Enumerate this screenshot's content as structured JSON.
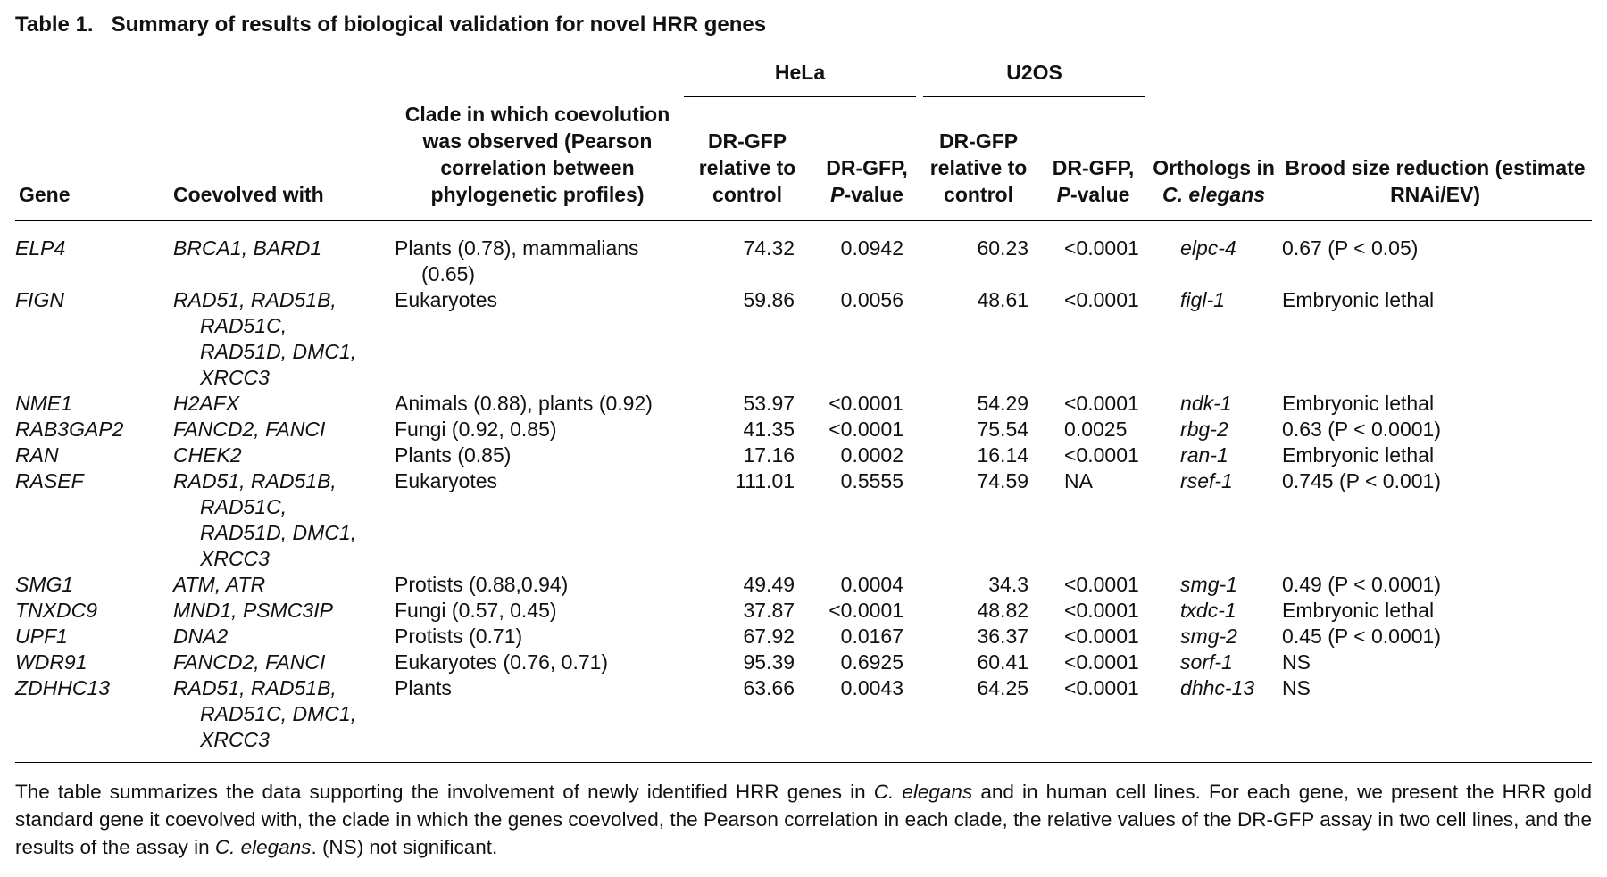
{
  "title": {
    "label": "Table 1.",
    "text": "Summary of results of biological validation for novel HRR genes"
  },
  "table": {
    "groups": [
      "HeLa",
      "U2OS"
    ],
    "columns": [
      [
        {
          "text": "Gene"
        }
      ],
      [
        {
          "text": "Coevolved with"
        }
      ],
      [
        {
          "text": "Clade in which coevolution was observed (Pearson correlation between phylogenetic profiles)"
        }
      ],
      [
        {
          "text": "DR-GFP relative to control"
        }
      ],
      [
        {
          "text": "DR-GFP, "
        },
        {
          "text": "P",
          "italic": true
        },
        {
          "text": "-value"
        }
      ],
      [
        {
          "text": "DR-GFP relative to control"
        }
      ],
      [
        {
          "text": "DR-GFP, "
        },
        {
          "text": "P",
          "italic": true
        },
        {
          "text": "-value"
        }
      ],
      [
        {
          "text": "Orthologs in "
        },
        {
          "text": "C. elegans",
          "italic": true
        }
      ],
      [
        {
          "text": "Brood size reduction (estimate RNAi/EV)"
        }
      ]
    ],
    "rows": [
      [
        "ELP4",
        "BRCA1, BARD1",
        "Plants (0.78), mammalians (0.65)",
        "74.32",
        "0.0942",
        "60.23",
        "<0.0001",
        "elpc-4",
        "0.67 (P < 0.05)"
      ],
      [
        "FIGN",
        "RAD51, RAD51B, RAD51C, RAD51D, DMC1, XRCC3",
        "Eukaryotes",
        "59.86",
        "0.0056",
        "48.61",
        "<0.0001",
        "figl-1",
        "Embryonic lethal"
      ],
      [
        "NME1",
        "H2AFX",
        "Animals (0.88), plants (0.92)",
        "53.97",
        "<0.0001",
        "54.29",
        "<0.0001",
        "ndk-1",
        "Embryonic lethal"
      ],
      [
        "RAB3GAP2",
        "FANCD2, FANCI",
        "Fungi (0.92, 0.85)",
        "41.35",
        "<0.0001",
        "75.54",
        "0.0025",
        "rbg-2",
        "0.63 (P < 0.0001)"
      ],
      [
        "RAN",
        "CHEK2",
        "Plants (0.85)",
        "17.16",
        "0.0002",
        "16.14",
        "<0.0001",
        "ran-1",
        "Embryonic lethal"
      ],
      [
        "RASEF",
        "RAD51, RAD51B, RAD51C, RAD51D, DMC1, XRCC3",
        "Eukaryotes",
        "111.01",
        "0.5555",
        "74.59",
        "NA",
        "rsef-1",
        "0.745 (P < 0.001)"
      ],
      [
        "SMG1",
        "ATM, ATR",
        "Protists (0.88,0.94)",
        "49.49",
        "0.0004",
        "34.3",
        "<0.0001",
        "smg-1",
        "0.49 (P < 0.0001)"
      ],
      [
        "TNXDC9",
        "MND1, PSMC3IP",
        "Fungi (0.57, 0.45)",
        "37.87",
        "<0.0001",
        "48.82",
        "<0.0001",
        "txdc-1",
        "Embryonic lethal"
      ],
      [
        "UPF1",
        "DNA2",
        "Protists (0.71)",
        "67.92",
        "0.0167",
        "36.37",
        "<0.0001",
        "smg-2",
        "0.45 (P < 0.0001)"
      ],
      [
        "WDR91",
        "FANCD2, FANCI",
        "Eukaryotes (0.76, 0.71)",
        "95.39",
        "0.6925",
        "60.41",
        "<0.0001",
        "sorf-1",
        "NS"
      ],
      [
        "ZDHHC13",
        "RAD51, RAD51B, RAD51C, DMC1, XRCC3",
        "Plants",
        "63.66",
        "0.0043",
        "64.25",
        "<0.0001",
        "dhhc-13",
        "NS"
      ]
    ]
  },
  "footnote": [
    {
      "text": "The table summarizes the data supporting the involvement of newly identified HRR genes in "
    },
    {
      "text": "C. elegans",
      "italic": true
    },
    {
      "text": " and in human cell lines. For each gene, we present the HRR gold standard gene it coevolved with, the clade in which the genes coevolved, the Pearson correlation in each clade, the relative values of the DR-GFP assay in two cell lines, and the results of the assay in "
    },
    {
      "text": "C. elegans",
      "italic": true
    },
    {
      "text": ". (NS) not significant."
    }
  ]
}
